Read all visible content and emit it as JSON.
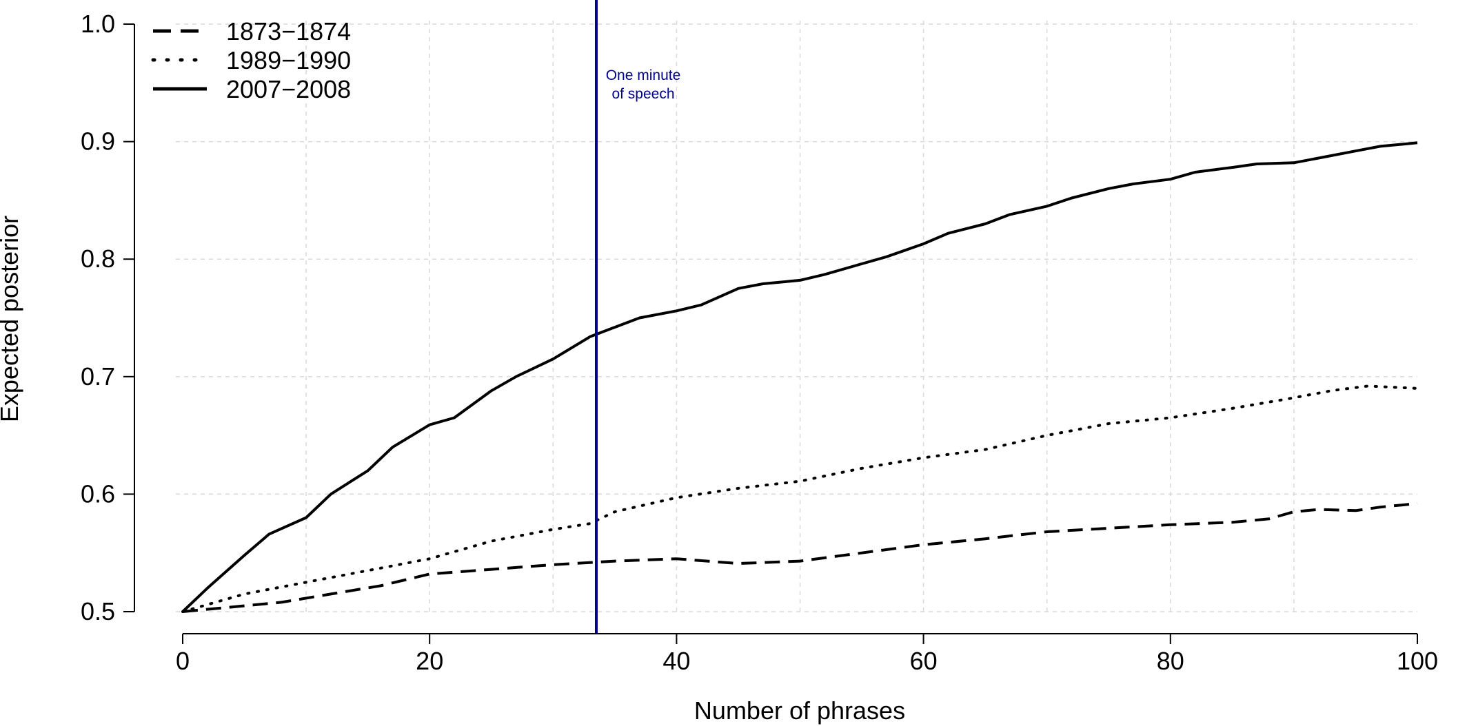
{
  "chart_data": {
    "type": "line",
    "xlabel": "Number of phrases",
    "ylabel": "Expected posterior",
    "xlim": [
      0,
      100
    ],
    "ylim": [
      0.5,
      1.0
    ],
    "x_ticks": [
      0,
      20,
      40,
      60,
      80,
      100
    ],
    "y_ticks": [
      0.5,
      0.6,
      0.7,
      0.8,
      0.9,
      1.0
    ],
    "y_tick_labels": [
      "0.5",
      "0.6",
      "0.7",
      "0.8",
      "0.9",
      "1.0"
    ],
    "grid": true,
    "legend_position": "top-left",
    "colors": {
      "series": "#000000",
      "vline": "#00008b",
      "grid": "#d9d9d9"
    },
    "series": [
      {
        "name": "1873−1874",
        "style": "dashed",
        "x": [
          0,
          5,
          8,
          12,
          16,
          20,
          25,
          30,
          35,
          40,
          45,
          50,
          55,
          60,
          65,
          70,
          75,
          80,
          85,
          88,
          90,
          92,
          95,
          97,
          100
        ],
        "y": [
          0.5,
          0.505,
          0.508,
          0.515,
          0.522,
          0.532,
          0.536,
          0.54,
          0.543,
          0.545,
          0.541,
          0.543,
          0.55,
          0.557,
          0.562,
          0.568,
          0.571,
          0.574,
          0.576,
          0.579,
          0.585,
          0.587,
          0.586,
          0.589,
          0.592
        ]
      },
      {
        "name": "1989−1990",
        "style": "dotted",
        "x": [
          0,
          5,
          10,
          15,
          20,
          25,
          30,
          33,
          35,
          40,
          45,
          50,
          55,
          60,
          65,
          70,
          75,
          80,
          85,
          90,
          93,
          96,
          100
        ],
        "y": [
          0.5,
          0.515,
          0.525,
          0.535,
          0.545,
          0.56,
          0.57,
          0.575,
          0.585,
          0.597,
          0.605,
          0.611,
          0.622,
          0.631,
          0.638,
          0.65,
          0.66,
          0.665,
          0.673,
          0.682,
          0.688,
          0.692,
          0.69
        ]
      },
      {
        "name": "2007−2008",
        "style": "solid",
        "x": [
          0,
          2,
          5,
          7,
          10,
          12,
          15,
          17,
          20,
          22,
          25,
          27,
          30,
          33,
          35,
          37,
          40,
          42,
          45,
          47,
          50,
          52,
          55,
          57,
          60,
          62,
          65,
          67,
          70,
          72,
          75,
          77,
          80,
          82,
          85,
          87,
          90,
          92,
          95,
          97,
          100
        ],
        "y": [
          0.5,
          0.52,
          0.548,
          0.566,
          0.58,
          0.6,
          0.62,
          0.64,
          0.659,
          0.665,
          0.688,
          0.7,
          0.715,
          0.734,
          0.742,
          0.75,
          0.756,
          0.761,
          0.775,
          0.779,
          0.782,
          0.787,
          0.796,
          0.802,
          0.813,
          0.822,
          0.83,
          0.838,
          0.845,
          0.852,
          0.86,
          0.864,
          0.868,
          0.874,
          0.878,
          0.881,
          0.882,
          0.886,
          0.892,
          0.896,
          0.899
        ]
      }
    ],
    "vline": {
      "x": 33.5
    },
    "annotation": {
      "lines": [
        "One minute",
        "of speech"
      ]
    }
  }
}
